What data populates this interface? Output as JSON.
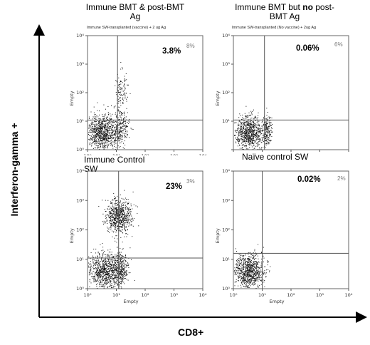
{
  "axis_titles": {
    "y": "Interferon-gamma +",
    "x": "CD8+"
  },
  "chart_data": [
    {
      "type": "scatter",
      "title_parts": [
        "Immune BMT & post-BMT Ag"
      ],
      "subtitle": "Immune SW-transplanted (vaccine) + 2 ug Ag",
      "percent": "3.8%",
      "faint_percent": "8%",
      "xlabel": "",
      "ylabel": "Empty",
      "x_ticks": [
        "10⁰",
        "10¹",
        "10²",
        "10³",
        "10⁴"
      ],
      "y_ticks": [
        "10⁰",
        "10¹",
        "10²",
        "10³",
        "10⁴"
      ],
      "xlim": [
        1,
        10000
      ],
      "ylim": [
        1,
        10000
      ],
      "scale": "log",
      "gate": {
        "x": 11,
        "y": 11
      },
      "populations": [
        {
          "cx": 3,
          "cy": 4,
          "sx": 0.28,
          "sy": 0.32,
          "n": 900
        },
        {
          "cx": 13,
          "cy": 6,
          "sx": 0.15,
          "sy": 0.32,
          "n": 260
        },
        {
          "cx": 15,
          "cy": 120,
          "sx": 0.1,
          "sy": 0.35,
          "n": 110
        }
      ]
    },
    {
      "type": "scatter",
      "title_parts": [
        "Immune BMT but ",
        "no",
        " post-BMT Ag"
      ],
      "subtitle": "Immune SW-transplanted (No vaccine) + 2ug Ag",
      "percent": "0.06%",
      "faint_percent": "6%",
      "xlabel": "",
      "ylabel": "Empty",
      "x_ticks": [
        "",
        "",
        "",
        "",
        ""
      ],
      "y_ticks": [
        "",
        "10¹",
        "10²",
        "10³",
        "10⁴"
      ],
      "xlim": [
        1,
        10000
      ],
      "ylim": [
        1,
        10000
      ],
      "scale": "log",
      "gate": {
        "x": 12,
        "y": 11
      },
      "populations": [
        {
          "cx": 3.5,
          "cy": 4,
          "sx": 0.25,
          "sy": 0.28,
          "n": 800
        },
        {
          "cx": 14,
          "cy": 5,
          "sx": 0.08,
          "sy": 0.28,
          "n": 180
        }
      ]
    },
    {
      "type": "scatter",
      "title_parts": [
        "Immune Control SW"
      ],
      "subtitle": "",
      "percent": "23%",
      "faint_percent": "3%",
      "xlabel": "Empty",
      "ylabel": "Empty",
      "x_ticks": [
        "10⁰",
        "10¹",
        "10²",
        "10³",
        "10⁴"
      ],
      "y_ticks": [
        "10⁰",
        "10¹",
        "10²",
        "10³",
        "10⁴"
      ],
      "xlim": [
        1,
        10000
      ],
      "ylim": [
        1,
        10000
      ],
      "scale": "log",
      "gate": {
        "x": 12,
        "y": 11
      },
      "populations": [
        {
          "cx": 4,
          "cy": 4,
          "sx": 0.3,
          "sy": 0.32,
          "n": 900
        },
        {
          "cx": 14,
          "cy": 5,
          "sx": 0.12,
          "sy": 0.3,
          "n": 250
        },
        {
          "cx": 12,
          "cy": 300,
          "sx": 0.22,
          "sy": 0.28,
          "n": 700
        }
      ]
    },
    {
      "type": "scatter",
      "title_parts": [
        "Naïve control SW"
      ],
      "subtitle": "",
      "percent": "0.02%",
      "faint_percent": "2%",
      "xlabel": "Empty",
      "ylabel": "Empty",
      "x_ticks": [
        "10⁰",
        "10¹",
        "10²",
        "10³",
        "10⁴"
      ],
      "y_ticks": [
        "10⁰",
        "10¹",
        "10²",
        "10³",
        "10⁴"
      ],
      "xlim": [
        1,
        10000
      ],
      "ylim": [
        1,
        10000
      ],
      "scale": "log",
      "gate": {
        "x": 10,
        "y": 16
      },
      "populations": [
        {
          "cx": 3.5,
          "cy": 4,
          "sx": 0.25,
          "sy": 0.28,
          "n": 850
        }
      ]
    }
  ]
}
